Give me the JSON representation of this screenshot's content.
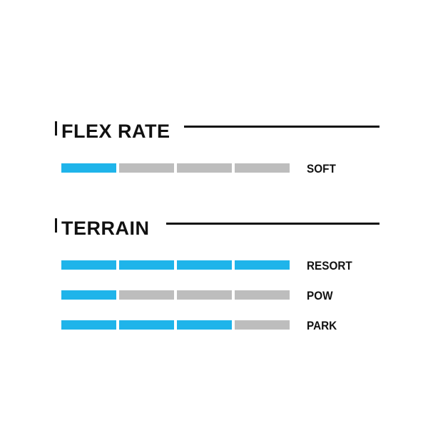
{
  "colors": {
    "filled": "#1fb4ea",
    "empty": "#bdbdbd"
  },
  "sections": [
    {
      "title": "FLEX RATE",
      "rows": [
        {
          "label": "SOFT",
          "level": 1,
          "max": 4
        }
      ]
    },
    {
      "title": "TERRAIN",
      "rows": [
        {
          "label": "RESORT",
          "level": 4,
          "max": 4
        },
        {
          "label": "POW",
          "level": 1,
          "max": 4
        },
        {
          "label": "PARK",
          "level": 3,
          "max": 4
        }
      ]
    }
  ]
}
